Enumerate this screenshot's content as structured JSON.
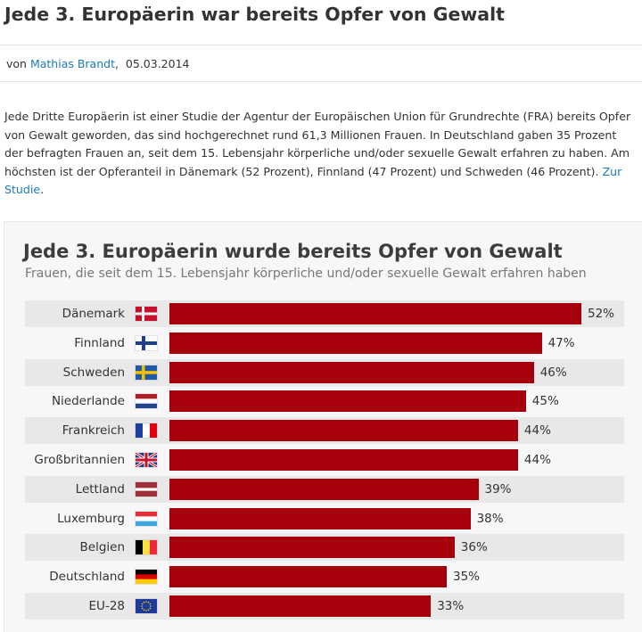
{
  "article": {
    "title": "Jede 3. Europäerin war bereits Opfer von Gewalt",
    "byline_prefix": "von",
    "author": "Mathias Brandt",
    "date": "05.03.2014",
    "intro_text": "Jede Dritte Europäerin ist einer Studie der Agentur der Europäischen Union für Grundrechte (FRA) bereits Opfer von Gewalt geworden, das sind hochgerechnet rund 61,3 Millionen Frauen. In Deutschland gaben 35 Prozent der befragten Frauen an, seit dem 15. Lebensjahr körperliche und/oder sexuelle Gewalt erfahren zu haben. Am höchsten ist der Opferanteil in Dänemark (52 Prozent), Finnland (47 Prozent) und Schweden (46 Prozent).",
    "study_link": "Zur Studie",
    "study_link_suffix": "."
  },
  "chart_data": {
    "type": "bar",
    "orientation": "horizontal",
    "title": "Jede 3. Europäerin wurde bereits Opfer von Gewalt",
    "subtitle": "Frauen, die seit dem 15. Lebensjahr körperliche und/oder sexuelle Gewalt erfahren haben",
    "categories": [
      "Dänemark",
      "Finnland",
      "Schweden",
      "Niederlande",
      "Frankreich",
      "Großbritannien",
      "Lettland",
      "Luxemburg",
      "Belgien",
      "Deutschland",
      "EU-28"
    ],
    "values": [
      52,
      47,
      46,
      45,
      44,
      44,
      39,
      38,
      36,
      35,
      33
    ],
    "value_labels": [
      "52%",
      "47%",
      "46%",
      "45%",
      "44%",
      "44%",
      "39%",
      "38%",
      "36%",
      "35%",
      "33%"
    ],
    "flags": [
      "flag-denmark-icon",
      "flag-finland-icon",
      "flag-sweden-icon",
      "flag-netherlands-icon",
      "flag-france-icon",
      "flag-uk-icon",
      "flag-latvia-icon",
      "flag-luxembourg-icon",
      "flag-belgium-icon",
      "flag-germany-icon",
      "flag-eu-icon"
    ],
    "xlim": [
      0,
      52
    ],
    "bar_color": "#a6000c",
    "grid": false
  }
}
